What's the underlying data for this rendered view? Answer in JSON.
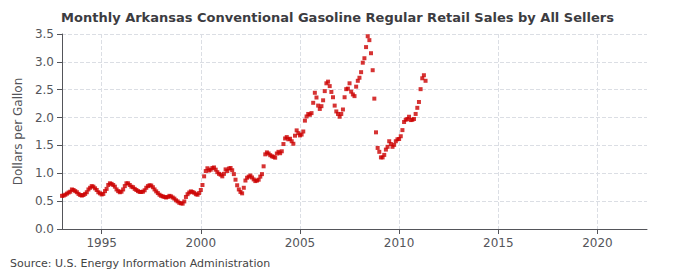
{
  "chart_data": {
    "type": "scatter",
    "title": "Monthly Arkansas Conventional Gasoline Regular Retail Sales by All Sellers",
    "ylabel": "Dollars per Gallon",
    "annotation": "Source: U.S. Energy Information Administration",
    "color": "#cc0000",
    "marker": "square",
    "grid": true,
    "xlim": [
      1993.0,
      2022.5
    ],
    "xticks": [
      1995,
      2000,
      2005,
      2010,
      2015,
      2020
    ],
    "ylim": [
      0.0,
      3.5
    ],
    "yticks": [
      {
        "value": 0.0,
        "label": "0.0"
      },
      0.5,
      {
        "value": 1.0,
        "label": "1.0"
      },
      1.5,
      {
        "value": 2.0,
        "label": "2.0"
      },
      2.5,
      {
        "value": 3.0,
        "label": "3.0"
      },
      3.5
    ],
    "x": [
      1993.0,
      1993.083,
      1993.167,
      1993.25,
      1993.333,
      1993.417,
      1993.5,
      1993.583,
      1993.667,
      1993.75,
      1993.833,
      1993.917,
      1994.0,
      1994.083,
      1994.167,
      1994.25,
      1994.333,
      1994.417,
      1994.5,
      1994.583,
      1994.667,
      1994.75,
      1994.833,
      1994.917,
      1995.0,
      1995.083,
      1995.167,
      1995.25,
      1995.333,
      1995.417,
      1995.5,
      1995.583,
      1995.667,
      1995.75,
      1995.833,
      1995.917,
      1996.0,
      1996.083,
      1996.167,
      1996.25,
      1996.333,
      1996.417,
      1996.5,
      1996.583,
      1996.667,
      1996.75,
      1996.833,
      1996.917,
      1997.0,
      1997.083,
      1997.167,
      1997.25,
      1997.333,
      1997.417,
      1997.5,
      1997.583,
      1997.667,
      1997.75,
      1997.833,
      1997.917,
      1998.0,
      1998.083,
      1998.167,
      1998.25,
      1998.333,
      1998.417,
      1998.5,
      1998.583,
      1998.667,
      1998.75,
      1998.833,
      1998.917,
      1999.0,
      1999.083,
      1999.167,
      1999.25,
      1999.333,
      1999.417,
      1999.5,
      1999.583,
      1999.667,
      1999.75,
      1999.833,
      1999.917,
      2000.0,
      2000.083,
      2000.167,
      2000.25,
      2000.333,
      2000.417,
      2000.5,
      2000.583,
      2000.667,
      2000.75,
      2000.833,
      2000.917,
      2001.0,
      2001.083,
      2001.167,
      2001.25,
      2001.333,
      2001.417,
      2001.5,
      2001.583,
      2001.667,
      2001.75,
      2001.833,
      2001.917,
      2002.0,
      2002.083,
      2002.167,
      2002.25,
      2002.333,
      2002.417,
      2002.5,
      2002.583,
      2002.667,
      2002.75,
      2002.833,
      2002.917,
      2003.0,
      2003.083,
      2003.167,
      2003.25,
      2003.333,
      2003.417,
      2003.5,
      2003.583,
      2003.667,
      2003.75,
      2003.833,
      2003.917,
      2004.0,
      2004.083,
      2004.167,
      2004.25,
      2004.333,
      2004.417,
      2004.5,
      2004.583,
      2004.667,
      2004.75,
      2004.833,
      2004.917,
      2005.0,
      2005.083,
      2005.167,
      2005.25,
      2005.333,
      2005.417,
      2005.5,
      2005.583,
      2005.667,
      2005.75,
      2005.833,
      2005.917,
      2006.0,
      2006.083,
      2006.167,
      2006.25,
      2006.333,
      2006.417,
      2006.5,
      2006.583,
      2006.667,
      2006.75,
      2006.833,
      2006.917,
      2007.0,
      2007.083,
      2007.167,
      2007.25,
      2007.333,
      2007.417,
      2007.5,
      2007.583,
      2007.667,
      2007.75,
      2007.833,
      2007.917,
      2008.0,
      2008.083,
      2008.167,
      2008.25,
      2008.333,
      2008.417,
      2008.5,
      2008.583,
      2008.667,
      2008.75,
      2008.833,
      2008.917,
      2009.0,
      2009.083,
      2009.167,
      2009.25,
      2009.333,
      2009.417,
      2009.5,
      2009.583,
      2009.667,
      2009.75,
      2009.833,
      2009.917,
      2010.0,
      2010.083,
      2010.167,
      2010.25,
      2010.333,
      2010.417,
      2010.5,
      2010.583,
      2010.667,
      2010.75,
      2010.833,
      2010.917,
      2011.0,
      2011.083,
      2011.167,
      2011.25,
      2011.333
    ],
    "values": [
      0.595,
      0.6,
      0.615,
      0.635,
      0.655,
      0.67,
      0.71,
      0.7,
      0.68,
      0.66,
      0.63,
      0.61,
      0.6,
      0.61,
      0.63,
      0.66,
      0.71,
      0.74,
      0.77,
      0.76,
      0.73,
      0.7,
      0.66,
      0.64,
      0.62,
      0.63,
      0.68,
      0.72,
      0.79,
      0.82,
      0.81,
      0.79,
      0.76,
      0.71,
      0.68,
      0.66,
      0.67,
      0.71,
      0.77,
      0.82,
      0.82,
      0.79,
      0.76,
      0.75,
      0.72,
      0.7,
      0.68,
      0.665,
      0.665,
      0.67,
      0.695,
      0.74,
      0.77,
      0.785,
      0.78,
      0.75,
      0.71,
      0.675,
      0.645,
      0.615,
      0.595,
      0.585,
      0.575,
      0.565,
      0.575,
      0.595,
      0.585,
      0.565,
      0.545,
      0.515,
      0.495,
      0.47,
      0.462,
      0.455,
      0.495,
      0.575,
      0.625,
      0.655,
      0.675,
      0.665,
      0.65,
      0.625,
      0.615,
      0.645,
      0.7,
      0.79,
      0.945,
      1.04,
      1.09,
      1.05,
      1.065,
      1.095,
      1.105,
      1.065,
      1.02,
      0.99,
      0.975,
      0.945,
      0.99,
      1.07,
      1.04,
      1.085,
      1.095,
      1.055,
      0.985,
      0.885,
      0.785,
      0.71,
      0.665,
      0.64,
      0.74,
      0.87,
      0.92,
      0.94,
      0.96,
      0.925,
      0.89,
      0.86,
      0.87,
      0.885,
      0.94,
      0.985,
      1.125,
      1.34,
      1.375,
      1.355,
      1.325,
      1.305,
      1.295,
      1.28,
      1.355,
      1.385,
      1.36,
      1.395,
      1.525,
      1.625,
      1.65,
      1.61,
      1.62,
      1.575,
      1.53,
      1.675,
      1.77,
      1.72,
      1.68,
      1.695,
      1.75,
      1.945,
      2.02,
      2.065,
      2.05,
      2.08,
      2.265,
      2.445,
      2.36,
      2.215,
      2.155,
      2.205,
      2.31,
      2.475,
      2.615,
      2.645,
      2.565,
      2.46,
      2.365,
      2.215,
      2.11,
      2.065,
      2.015,
      2.065,
      2.145,
      2.365,
      2.51,
      2.52,
      2.615,
      2.465,
      2.415,
      2.385,
      2.555,
      2.66,
      2.715,
      2.815,
      2.985,
      3.065,
      3.265,
      3.46,
      3.39,
      3.155,
      2.85,
      2.34,
      1.735,
      1.455,
      1.385,
      1.285,
      1.285,
      1.33,
      1.425,
      1.475,
      1.575,
      1.525,
      1.475,
      1.51,
      1.575,
      1.61,
      1.615,
      1.665,
      1.775,
      1.92,
      1.96,
      1.975,
      2.015,
      1.955,
      1.96,
      1.975,
      2.065,
      2.175,
      2.28,
      2.51,
      2.705,
      2.76,
      2.66
    ]
  }
}
